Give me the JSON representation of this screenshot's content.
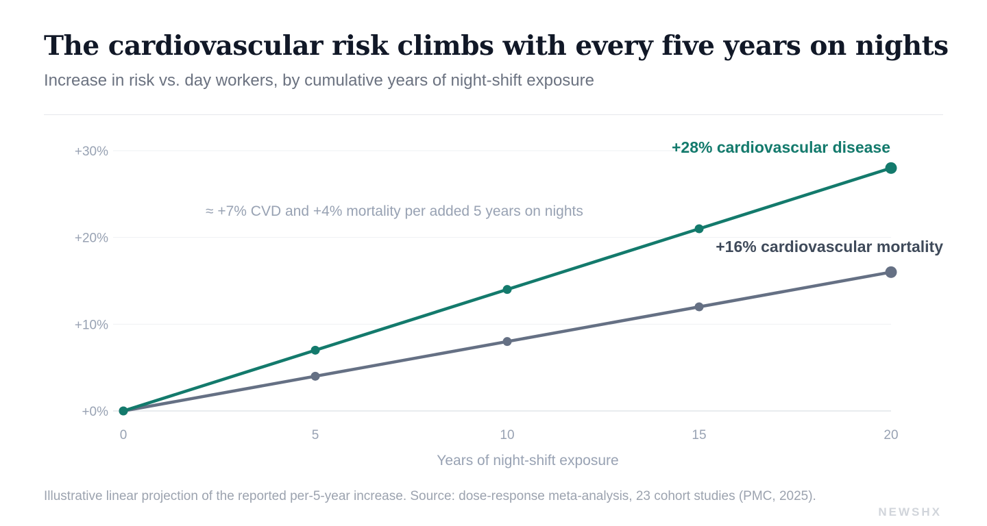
{
  "header": {
    "title": "The cardiovascular risk climbs with every five years on nights",
    "subtitle": "Increase in risk vs. day workers, by cumulative years of night-shift exposure"
  },
  "footer": {
    "source": "Illustrative linear projection of the reported per-5-year increase. Source: dose-response meta-analysis, 23 cohort studies (PMC, 2025).",
    "brand": "NEWSHX"
  },
  "colors": {
    "cvd": "#137a6c",
    "mortality": "#657084",
    "grid": "#eef0f3",
    "axis_text": "#98a2b3"
  },
  "chart_data": {
    "type": "line",
    "title": "",
    "xlabel": "Years of night-shift exposure",
    "ylabel": "",
    "x": [
      0,
      5,
      10,
      15,
      20
    ],
    "xlim": [
      0,
      20
    ],
    "ylim": [
      0,
      30
    ],
    "x_ticks": [
      0,
      5,
      10,
      15,
      20
    ],
    "y_ticks": [
      0,
      10,
      20,
      30
    ],
    "y_tick_labels": [
      "+0%",
      "+10%",
      "+20%",
      "+30%"
    ],
    "grid": true,
    "series": [
      {
        "key": "cvd",
        "values": [
          0,
          7,
          14,
          21,
          28
        ],
        "end_label": "+28% cardiovascular disease"
      },
      {
        "key": "mortality",
        "values": [
          0,
          4,
          8,
          12,
          16
        ],
        "end_label": "+16% cardiovascular mortality"
      }
    ],
    "annotation": "≈ +7% CVD and +4% mortality per added 5 years on nights"
  }
}
